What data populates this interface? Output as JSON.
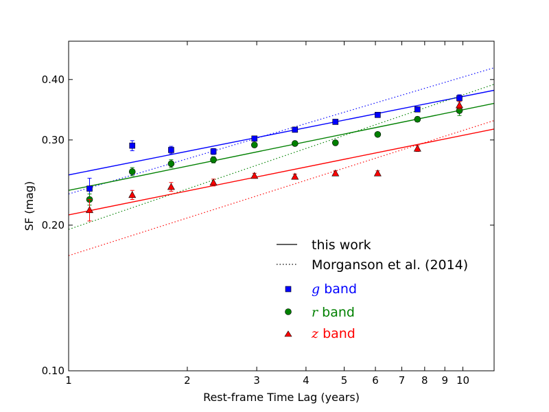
{
  "chart_data": {
    "type": "scatter",
    "xscale": "log",
    "yscale": "log",
    "xlim": [
      1,
      12
    ],
    "ylim": [
      0.1,
      0.48
    ],
    "xlabel": "Rest-frame Time Lag (years)",
    "ylabel": "SF (mag)",
    "xticks": [
      {
        "value": 1,
        "label": "1"
      },
      {
        "value": 2,
        "label": "2"
      },
      {
        "value": 3,
        "label": "3"
      },
      {
        "value": 4,
        "label": "4"
      },
      {
        "value": 5,
        "label": "5"
      },
      {
        "value": 6,
        "label": "6"
      },
      {
        "value": 7,
        "label": "7"
      },
      {
        "value": 8,
        "label": "8"
      },
      {
        "value": 9,
        "label": "9"
      },
      {
        "value": 10,
        "label": "10"
      }
    ],
    "yticks": [
      {
        "value": 0.1,
        "label": "0.10"
      },
      {
        "value": 0.2,
        "label": "0.20"
      },
      {
        "value": 0.3,
        "label": "0.30"
      },
      {
        "value": 0.4,
        "label": "0.40"
      }
    ],
    "legend": {
      "placement": "lower-right",
      "line_entries": [
        {
          "label": "this work",
          "style": "solid"
        },
        {
          "label": "Morganson et al. (2014)",
          "style": "dotted"
        }
      ],
      "band_suffix": "band"
    },
    "series": [
      {
        "name": "g",
        "color": "#0000ff",
        "marker": "square",
        "x": [
          1.13,
          1.45,
          1.82,
          2.33,
          2.96,
          3.75,
          4.75,
          6.08,
          7.67,
          9.8
        ],
        "y": [
          0.238,
          0.292,
          0.286,
          0.284,
          0.302,
          0.315,
          0.327,
          0.338,
          0.347,
          0.366
        ],
        "yerr": [
          0.012,
          0.007,
          0.005,
          0.004,
          0.003,
          0.003,
          0.003,
          0.003,
          0.004,
          0.006
        ],
        "fit": {
          "y_at_1": 0.254,
          "y_at_12": 0.38
        },
        "morganson": {
          "y_at_1": 0.232,
          "y_at_12": 0.423
        }
      },
      {
        "name": "r",
        "color": "#008000",
        "marker": "circle",
        "x": [
          1.13,
          1.45,
          1.82,
          2.33,
          2.96,
          3.75,
          4.75,
          6.08,
          7.67,
          9.8
        ],
        "y": [
          0.226,
          0.258,
          0.268,
          0.273,
          0.293,
          0.295,
          0.296,
          0.308,
          0.331,
          0.345
        ],
        "yerr": [
          0.006,
          0.005,
          0.005,
          0.004,
          0.003,
          0.003,
          0.003,
          0.003,
          0.004,
          0.008
        ],
        "fit": {
          "y_at_1": 0.236,
          "y_at_12": 0.357
        },
        "morganson": {
          "y_at_1": 0.196,
          "y_at_12": 0.391
        }
      },
      {
        "name": "z",
        "color": "#ff0000",
        "marker": "triangle",
        "x": [
          1.13,
          1.45,
          1.82,
          2.33,
          2.96,
          3.75,
          4.75,
          6.08,
          7.67,
          9.8
        ],
        "y": [
          0.215,
          0.231,
          0.24,
          0.245,
          0.253,
          0.252,
          0.256,
          0.256,
          0.288,
          0.354
        ],
        "yerr": [
          0.011,
          0.005,
          0.005,
          0.004,
          0.003,
          0.003,
          0.003,
          0.003,
          0.004,
          0.006
        ],
        "fit": {
          "y_at_1": 0.21,
          "y_at_12": 0.316
        },
        "morganson": {
          "y_at_1": 0.173,
          "y_at_12": 0.329
        }
      }
    ]
  }
}
